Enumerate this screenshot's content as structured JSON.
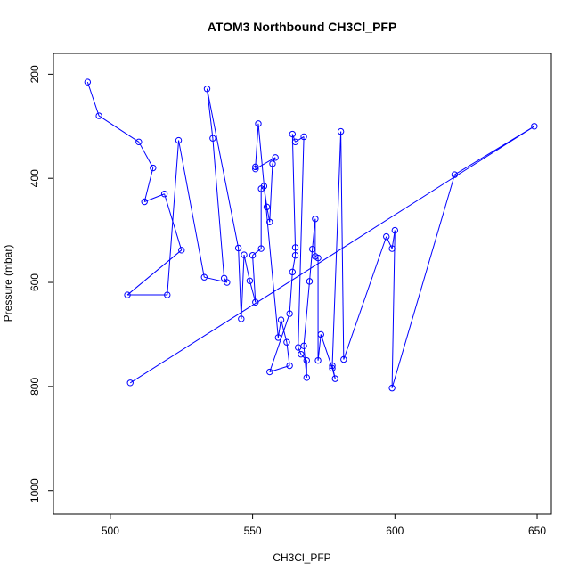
{
  "chart_data": {
    "type": "line",
    "title": "ATOM3 Northbound CH3Cl_PFP",
    "xlabel": "CH3Cl_PFP",
    "ylabel": "Pressure (mbar)",
    "xlim": [
      480,
      655
    ],
    "ylim": [
      1045,
      160
    ],
    "y_reversed": true,
    "x_ticks": [
      500,
      550,
      600,
      650
    ],
    "y_ticks": [
      200,
      400,
      600,
      800,
      1000
    ],
    "grid": false,
    "series_color": "#0000ff",
    "marker": "open-circle",
    "points": [
      [
        492,
        215
      ],
      [
        496,
        280
      ],
      [
        510,
        330
      ],
      [
        515,
        380
      ],
      [
        512,
        445
      ],
      [
        519,
        430
      ],
      [
        525,
        538
      ],
      [
        506,
        624
      ],
      [
        520,
        624
      ],
      [
        524,
        327
      ],
      [
        533,
        590
      ],
      [
        541,
        600
      ],
      [
        540,
        592
      ],
      [
        536,
        323
      ],
      [
        534,
        228
      ],
      [
        545,
        534
      ],
      [
        546,
        670
      ],
      [
        547,
        547
      ],
      [
        549,
        597
      ],
      [
        551,
        638
      ],
      [
        550,
        548
      ],
      [
        553,
        535
      ],
      [
        553,
        420
      ],
      [
        554,
        415
      ],
      [
        555,
        455
      ],
      [
        556,
        484
      ],
      [
        557,
        372
      ],
      [
        558,
        360
      ],
      [
        551,
        382
      ],
      [
        551,
        378
      ],
      [
        552,
        295
      ],
      [
        559,
        706
      ],
      [
        560,
        672
      ],
      [
        562,
        715
      ],
      [
        563,
        760
      ],
      [
        556,
        772
      ],
      [
        563,
        660
      ],
      [
        564,
        580
      ],
      [
        565,
        548
      ],
      [
        565,
        533
      ],
      [
        564,
        315
      ],
      [
        565,
        330
      ],
      [
        568,
        320
      ],
      [
        566,
        725
      ],
      [
        567,
        738
      ],
      [
        569,
        750
      ],
      [
        569,
        783
      ],
      [
        568,
        722
      ],
      [
        570,
        598
      ],
      [
        571,
        536
      ],
      [
        572,
        478
      ],
      [
        572,
        550
      ],
      [
        573,
        553
      ],
      [
        573,
        750
      ],
      [
        574,
        700
      ],
      [
        578,
        765
      ],
      [
        579,
        785
      ],
      [
        578,
        760
      ],
      [
        581,
        310
      ],
      [
        582,
        748
      ],
      [
        597,
        512
      ],
      [
        599,
        535
      ],
      [
        600,
        500
      ],
      [
        599,
        803
      ],
      [
        621,
        393
      ],
      [
        649,
        300
      ],
      [
        507,
        793
      ]
    ]
  }
}
